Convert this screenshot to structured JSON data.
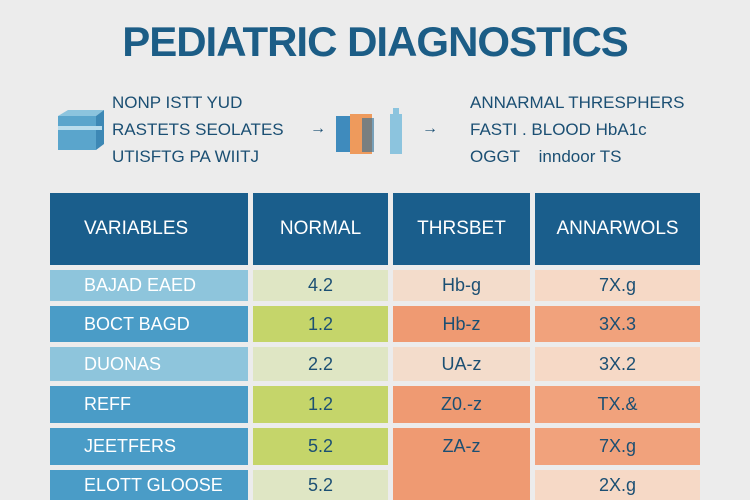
{
  "title": "PEDIATRIC DIAGNOSTICS",
  "left_lines": [
    "NONP ISTT YUD",
    "RASTETS SEOLATES",
    "UTISFTG PA WIITJ"
  ],
  "right_lines": [
    "ANNARMAL THRESPHERS",
    "FASTI . BLOOD HbA1c",
    "OGGT    inndoor TS"
  ],
  "arrow": "→",
  "colors": {
    "header": "#1a5e8c",
    "text": "#1b4f73",
    "orange": "#ef9a72",
    "green": "#c5d56a"
  },
  "table": {
    "headers": [
      "VARIABLES",
      "NORMAL",
      "THRSBET",
      "ANNARWOLS"
    ],
    "rows": [
      {
        "variable": "BAJAD EAED",
        "normal": "4.2",
        "threshold": "Hb-g",
        "abnormal": "7X.g"
      },
      {
        "variable": "BOCT BAGD",
        "normal": "1.2",
        "threshold": "Hb-z",
        "abnormal": "3X.3"
      },
      {
        "variable": "DUONAS",
        "normal": "2.2",
        "threshold": "UA-z",
        "abnormal": "3X.2"
      },
      {
        "variable": "REFF",
        "normal": "1.2",
        "threshold": "Z0.-z",
        "abnormal": "TX.&"
      },
      {
        "variable": "JEETFERS",
        "normal": "5.2",
        "threshold": "ZA-z",
        "abnormal": "7X.g"
      },
      {
        "variable": "ELOTT GLOOSE",
        "normal": "5.2",
        "threshold": "",
        "abnormal": "2X.g"
      }
    ]
  }
}
